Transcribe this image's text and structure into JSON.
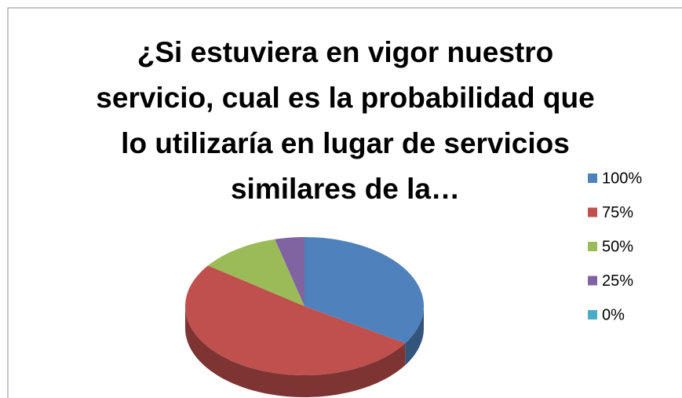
{
  "chart_data": {
    "type": "pie3d",
    "title": "¿Si estuviera en vigor nuestro servicio, cual es la probabilidad que lo utilizaría en lugar de servicios similares de la…",
    "categories": [
      "100%",
      "75%",
      "50%",
      "25%",
      "0%"
    ],
    "values": [
      34,
      51,
      11,
      4,
      0
    ],
    "colors": [
      "#4f81bd",
      "#c0504d",
      "#9bbb59",
      "#8064a2",
      "#4bacc6"
    ],
    "legend": "right"
  }
}
